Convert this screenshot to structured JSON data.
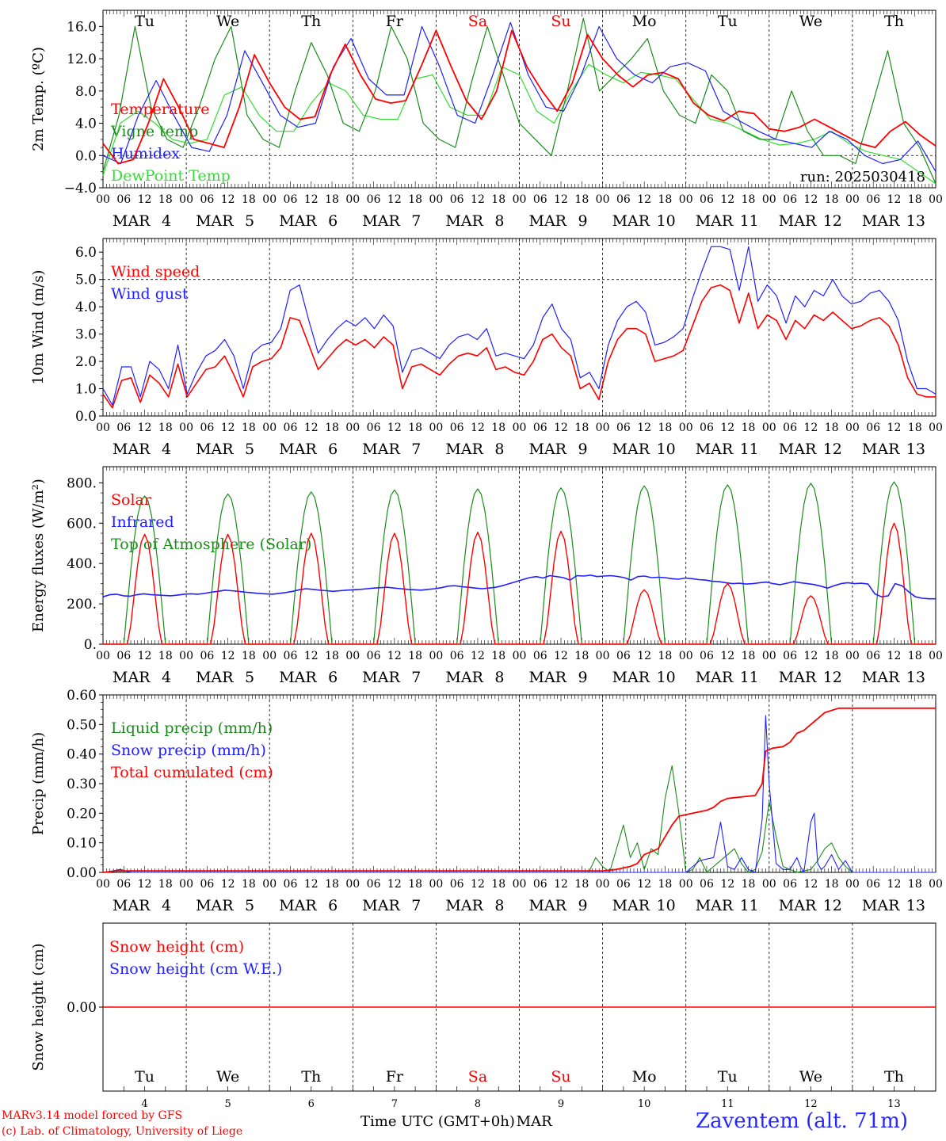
{
  "colors": {
    "red": "#ff0000",
    "green": "#1a8c1a",
    "blue": "#2020ff",
    "lightgreen": "#33dd33",
    "grid": "#000000"
  },
  "days": [
    {
      "weekday": "Tu",
      "month": "MAR",
      "date": "4",
      "weekend": false
    },
    {
      "weekday": "We",
      "month": "MAR",
      "date": "5",
      "weekend": false
    },
    {
      "weekday": "Th",
      "month": "MAR",
      "date": "6",
      "weekend": false
    },
    {
      "weekday": "Fr",
      "month": "MAR",
      "date": "7",
      "weekend": false
    },
    {
      "weekday": "Sa",
      "month": "MAR",
      "date": "8",
      "weekend": true
    },
    {
      "weekday": "Su",
      "month": "MAR",
      "date": "9",
      "weekend": true
    },
    {
      "weekday": "Mo",
      "month": "MAR",
      "date": "10",
      "weekend": false
    },
    {
      "weekday": "Tu",
      "month": "MAR",
      "date": "11",
      "weekend": false
    },
    {
      "weekday": "We",
      "month": "MAR",
      "date": "12",
      "weekend": false
    },
    {
      "weekday": "Th",
      "month": "MAR",
      "date": "13",
      "weekend": false
    }
  ],
  "hour_ticks": [
    "00",
    "06",
    "12",
    "18"
  ],
  "final_hour": "00",
  "footer": {
    "credit_line1": "MARv3.14 model forced by GFS",
    "credit_line2": "(c) Lab. of Climatology, University of Liege",
    "xaxis_title": "Time UTC (GMT+0h)",
    "month_label": "MAR",
    "station": "Zaventem (alt. 71m)"
  },
  "chart_data": [
    {
      "type": "line",
      "ylabel": "2m Temp. (ºC)",
      "ylim": [
        -4,
        18
      ],
      "yticks": [
        -4,
        0,
        4,
        8,
        12,
        16
      ],
      "ytick_labels": [
        "−4.0",
        "0.0",
        "4.0",
        "8.0",
        "12.0",
        "16.0"
      ],
      "dashed_y": 0,
      "annotation": "run: 2025030418",
      "show_weekdays": true,
      "series": [
        {
          "name": "Temperature",
          "color": "red",
          "key": "temp"
        },
        {
          "name": "Vigne temp",
          "color": "green",
          "key": "vigne"
        },
        {
          "name": "Humidex",
          "color": "blue",
          "key": "humidex"
        },
        {
          "name": "DewPoint Temp",
          "color": "lightgreen",
          "key": "dew"
        }
      ],
      "x_hours": [
        0,
        3,
        6,
        9,
        12,
        15,
        18,
        21,
        24,
        27,
        30,
        33,
        36,
        39,
        42,
        45,
        48,
        51,
        54,
        57,
        60,
        63,
        66,
        69,
        72,
        75,
        78,
        81,
        84,
        87,
        90,
        93,
        96,
        99,
        102,
        105,
        108,
        111,
        114,
        117,
        120,
        123,
        126,
        129,
        132,
        135,
        138,
        141,
        144,
        147,
        150,
        153,
        156,
        159,
        162,
        165,
        168,
        171,
        174,
        177,
        180,
        183,
        186,
        189,
        192,
        195,
        198,
        201,
        204,
        207,
        210,
        213,
        216,
        219,
        222,
        225,
        228,
        231,
        234,
        237,
        240
      ],
      "values": {
        "temp": [
          1.5,
          -1,
          -0.5,
          4,
          9.5,
          6,
          2,
          1.5,
          1,
          6,
          12.5,
          9,
          6,
          4.5,
          4.8,
          10,
          13.8,
          10,
          7,
          6.5,
          6.8,
          11,
          15.5,
          11,
          6.8,
          4.5,
          8,
          15.5,
          11,
          8,
          5.5,
          9,
          15,
          12,
          10,
          8.5,
          10,
          10.3,
          9.5,
          6.5,
          5,
          4.3,
          5.5,
          5.2,
          3.3,
          3,
          3.5,
          4.5,
          3.5,
          2.5,
          1.5,
          1,
          3,
          4.2,
          2.5,
          1.2
        ],
        "vigne": [
          -2,
          5,
          16,
          6,
          2,
          1,
          6,
          12,
          16,
          5,
          2,
          1,
          8,
          14,
          10,
          4,
          3,
          8,
          16,
          12,
          4,
          2,
          1,
          9,
          16,
          10,
          4,
          2,
          0,
          8,
          17,
          8,
          10,
          12,
          14.5,
          8,
          5,
          4,
          10,
          8,
          3,
          2,
          2,
          8,
          3,
          0,
          0,
          -1,
          6,
          13,
          4,
          1,
          -3.5
        ],
        "humidex": [
          0,
          -1,
          5,
          9.3,
          5,
          1,
          0.5,
          5,
          13,
          9,
          5,
          3.5,
          4,
          11,
          14.5,
          9.5,
          7.5,
          7.5,
          16,
          11,
          5,
          4,
          10,
          16.5,
          10,
          6,
          5.5,
          10,
          16,
          12,
          10,
          9,
          11,
          11.5,
          10.5,
          5.5,
          4.2,
          3,
          2,
          1.5,
          1,
          3,
          2,
          0,
          -1,
          -0.5,
          1.8,
          -2
        ],
        "dew": [
          -2.5,
          4,
          5.5,
          4,
          2,
          1.5,
          2,
          7.5,
          8.5,
          5,
          3,
          3,
          6.5,
          9,
          8,
          5,
          4.5,
          4.5,
          9.5,
          10,
          6,
          5,
          5,
          11,
          10,
          5.5,
          4,
          8,
          11.3,
          10,
          9,
          10.3,
          10,
          9.5,
          7,
          4.5,
          4,
          3,
          2,
          1.3,
          1.5,
          2,
          3,
          1.5,
          0.5,
          0,
          -0.5,
          -2,
          -3.5
        ]
      }
    },
    {
      "type": "line",
      "ylabel": "10m Wind (m/s)",
      "ylim": [
        0,
        6.5
      ],
      "yticks": [
        0,
        1,
        2,
        3,
        4,
        5,
        6
      ],
      "ytick_labels": [
        "0.0",
        "1.0",
        "2.0",
        "3.0",
        "4.0",
        "5.0",
        "6.0"
      ],
      "dashed_y": 5,
      "series": [
        {
          "name": "Wind speed",
          "color": "red",
          "key": "speed"
        },
        {
          "name": "Wind gust",
          "color": "blue",
          "key": "gust"
        }
      ],
      "values": {
        "speed": [
          0.8,
          0.3,
          1.3,
          1.4,
          0.5,
          1.5,
          1.2,
          0.7,
          1.9,
          0.7,
          1.2,
          1.7,
          1.8,
          2.2,
          1.5,
          0.7,
          1.8,
          2.0,
          2.1,
          2.5,
          3.6,
          3.5,
          2.6,
          1.7,
          2.1,
          2.5,
          2.8,
          2.6,
          2.8,
          2.5,
          2.9,
          2.6,
          1.0,
          1.8,
          1.9,
          1.7,
          1.5,
          1.9,
          2.2,
          2.3,
          2.2,
          2.5,
          1.7,
          1.8,
          1.6,
          1.5,
          2.0,
          2.8,
          3.0,
          2.5,
          2.2,
          1.0,
          1.2,
          0.6,
          2.0,
          2.8,
          3.2,
          3.2,
          3.0,
          2.0,
          2.1,
          2.2,
          2.4,
          3.3,
          4.2,
          4.7,
          4.8,
          4.6,
          3.4,
          4.5,
          3.2,
          3.7,
          3.5,
          2.8,
          3.5,
          3.2,
          3.7,
          3.5,
          3.8,
          3.5,
          3.2,
          3.3,
          3.5,
          3.6,
          3.3,
          2.6,
          1.4,
          0.8,
          0.7,
          0.7
        ],
        "gust": [
          1.0,
          0.4,
          1.8,
          1.8,
          0.7,
          2.0,
          1.7,
          1.0,
          2.6,
          0.8,
          1.6,
          2.2,
          2.4,
          2.8,
          2.2,
          1.0,
          2.3,
          2.6,
          2.7,
          3.2,
          4.6,
          4.8,
          3.5,
          2.3,
          2.8,
          3.2,
          3.5,
          3.3,
          3.6,
          3.2,
          3.7,
          3.3,
          1.6,
          2.4,
          2.5,
          2.3,
          2.1,
          2.6,
          2.9,
          3.0,
          2.8,
          3.2,
          2.2,
          2.3,
          2.2,
          2.1,
          2.6,
          3.6,
          4.1,
          3.2,
          2.8,
          1.4,
          1.6,
          1.0,
          2.6,
          3.5,
          4.0,
          4.2,
          3.8,
          2.6,
          2.7,
          2.9,
          3.2,
          4.3,
          5.3,
          6.2,
          6.2,
          6.1,
          4.6,
          6.2,
          4.2,
          4.8,
          4.4,
          3.4,
          4.4,
          4.0,
          4.6,
          4.4,
          5.0,
          4.4,
          4.1,
          4.2,
          4.5,
          4.6,
          4.2,
          3.5,
          2.0,
          1.0,
          1.0,
          0.8
        ]
      }
    },
    {
      "type": "line",
      "ylabel": "Energy fluxes (W/m²)",
      "ylim": [
        0,
        880
      ],
      "yticks": [
        0,
        200,
        400,
        600,
        800
      ],
      "ytick_labels": [
        "0.",
        "200.",
        "400.",
        "600.",
        "800."
      ],
      "series": [
        {
          "name": "Solar",
          "color": "red",
          "key": "solar"
        },
        {
          "name": "Infrared",
          "color": "blue",
          "key": "infrared"
        },
        {
          "name": "Top of Atmosphere (Solar)",
          "color": "green",
          "key": "toa"
        }
      ],
      "solar_daily_peak": [
        545,
        545,
        550,
        550,
        555,
        560,
        270,
        300,
        240,
        600
      ],
      "toa_daily_peak": [
        735,
        745,
        755,
        765,
        770,
        775,
        785,
        790,
        798,
        805
      ],
      "infrared_hourly_values": [
        235,
        245,
        248,
        240,
        238,
        245,
        250,
        246,
        244,
        242,
        240,
        243,
        248,
        250,
        248,
        252,
        258,
        262,
        268,
        265,
        262,
        258,
        255,
        252,
        250,
        248,
        252,
        256,
        262,
        270,
        275,
        272,
        268,
        265,
        262,
        265,
        268,
        270,
        272,
        275,
        278,
        280,
        282,
        278,
        275,
        272,
        270,
        268,
        272,
        275,
        280,
        288,
        290,
        285,
        282,
        278,
        275,
        278,
        282,
        290,
        300,
        310,
        320,
        330,
        335,
        328,
        340,
        335,
        330,
        318,
        340,
        338,
        342,
        335,
        338,
        340,
        336,
        330,
        318,
        335,
        338,
        330,
        332,
        330,
        325,
        322,
        328,
        325,
        320,
        318,
        312,
        310,
        305,
        300,
        302,
        298,
        300,
        305,
        308,
        300,
        295,
        302,
        310,
        305,
        300,
        296,
        288,
        278,
        290,
        300,
        305,
        300,
        302,
        298,
        250,
        235,
        240,
        300,
        290,
        260,
        235,
        228,
        225,
        225
      ]
    },
    {
      "type": "line",
      "ylabel": "Precip (mm/h)",
      "ylim": [
        0,
        0.6
      ],
      "yticks": [
        0,
        0.1,
        0.2,
        0.3,
        0.4,
        0.5,
        0.6
      ],
      "ytick_labels": [
        "0.00",
        "0.10",
        "0.20",
        "0.30",
        "0.40",
        "0.50",
        "0.60"
      ],
      "series": [
        {
          "name": "Liquid precip (mm/h)",
          "color": "green",
          "key": "liquid"
        },
        {
          "name": "Snow precip (mm/h)",
          "color": "blue",
          "key": "snow"
        },
        {
          "name": "Total cumulated (cm)",
          "color": "red",
          "key": "cum"
        }
      ],
      "values": {
        "liquid": [
          [
            0,
            0
          ],
          [
            3,
            0.005
          ],
          [
            5,
            0.01
          ],
          [
            8,
            0
          ],
          [
            140,
            0
          ],
          [
            142,
            0.05
          ],
          [
            144,
            0.02
          ],
          [
            146,
            0
          ],
          [
            150,
            0.16
          ],
          [
            152,
            0.05
          ],
          [
            154,
            0.1
          ],
          [
            156,
            0.01
          ],
          [
            158,
            0.08
          ],
          [
            160,
            0.06
          ],
          [
            162,
            0.25
          ],
          [
            164,
            0.36
          ],
          [
            166,
            0.2
          ],
          [
            168,
            0
          ],
          [
            170,
            0.01
          ],
          [
            172,
            0.05
          ],
          [
            174,
            0
          ],
          [
            178,
            0.04
          ],
          [
            182,
            0.08
          ],
          [
            184,
            0.03
          ],
          [
            186,
            0
          ],
          [
            188,
            0.01
          ],
          [
            190,
            0.07
          ],
          [
            192,
            0.24
          ],
          [
            194,
            0.12
          ],
          [
            196,
            0.02
          ],
          [
            198,
            0.01
          ],
          [
            200,
            0
          ],
          [
            204,
            0.01
          ],
          [
            206,
            0.04
          ],
          [
            208,
            0.08
          ],
          [
            210,
            0.1
          ],
          [
            212,
            0.05
          ],
          [
            214,
            0.02
          ],
          [
            216,
            0
          ],
          [
            240,
            0
          ]
        ],
        "snow": [
          [
            0,
            0
          ],
          [
            3,
            0.005
          ],
          [
            5,
            0.01
          ],
          [
            8,
            0
          ],
          [
            168,
            0
          ],
          [
            170,
            0.02
          ],
          [
            172,
            0.04
          ],
          [
            176,
            0.05
          ],
          [
            178,
            0.17
          ],
          [
            180,
            0.02
          ],
          [
            182,
            0.01
          ],
          [
            184,
            0.05
          ],
          [
            186,
            0.01
          ],
          [
            188,
            0
          ],
          [
            190,
            0.18
          ],
          [
            191,
            0.53
          ],
          [
            192,
            0.3
          ],
          [
            194,
            0.03
          ],
          [
            196,
            0.01
          ],
          [
            198,
            0.01
          ],
          [
            200,
            0.05
          ],
          [
            201,
            0.02
          ],
          [
            202,
            0
          ],
          [
            204,
            0.17
          ],
          [
            205,
            0.2
          ],
          [
            206,
            0.03
          ],
          [
            207,
            0.01
          ],
          [
            208,
            0.02
          ],
          [
            210,
            0.06
          ],
          [
            212,
            0.01
          ],
          [
            214,
            0.04
          ],
          [
            216,
            0
          ],
          [
            240,
            0
          ]
        ],
        "cum": [
          [
            0,
            0
          ],
          [
            4,
            0.005
          ],
          [
            144,
            0.005
          ],
          [
            148,
            0.01
          ],
          [
            152,
            0.02
          ],
          [
            154,
            0.03
          ],
          [
            156,
            0.06
          ],
          [
            158,
            0.07
          ],
          [
            160,
            0.08
          ],
          [
            162,
            0.12
          ],
          [
            164,
            0.16
          ],
          [
            166,
            0.19
          ],
          [
            170,
            0.2
          ],
          [
            174,
            0.21
          ],
          [
            176,
            0.22
          ],
          [
            178,
            0.24
          ],
          [
            180,
            0.25
          ],
          [
            188,
            0.26
          ],
          [
            190,
            0.3
          ],
          [
            191,
            0.41
          ],
          [
            193,
            0.42
          ],
          [
            196,
            0.425
          ],
          [
            198,
            0.44
          ],
          [
            200,
            0.47
          ],
          [
            202,
            0.48
          ],
          [
            204,
            0.5
          ],
          [
            206,
            0.52
          ],
          [
            208,
            0.54
          ],
          [
            212,
            0.555
          ],
          [
            216,
            0.555
          ],
          [
            240,
            0.555
          ]
        ]
      }
    },
    {
      "type": "line",
      "ylabel": "Snow height (cm)",
      "ytick_labels": [
        "0.00"
      ],
      "series": [
        {
          "name": "Snow height (cm)",
          "color": "red"
        },
        {
          "name": "Snow height (cm W.E.)",
          "color": "blue"
        }
      ],
      "values": {
        "height": 0
      }
    }
  ]
}
